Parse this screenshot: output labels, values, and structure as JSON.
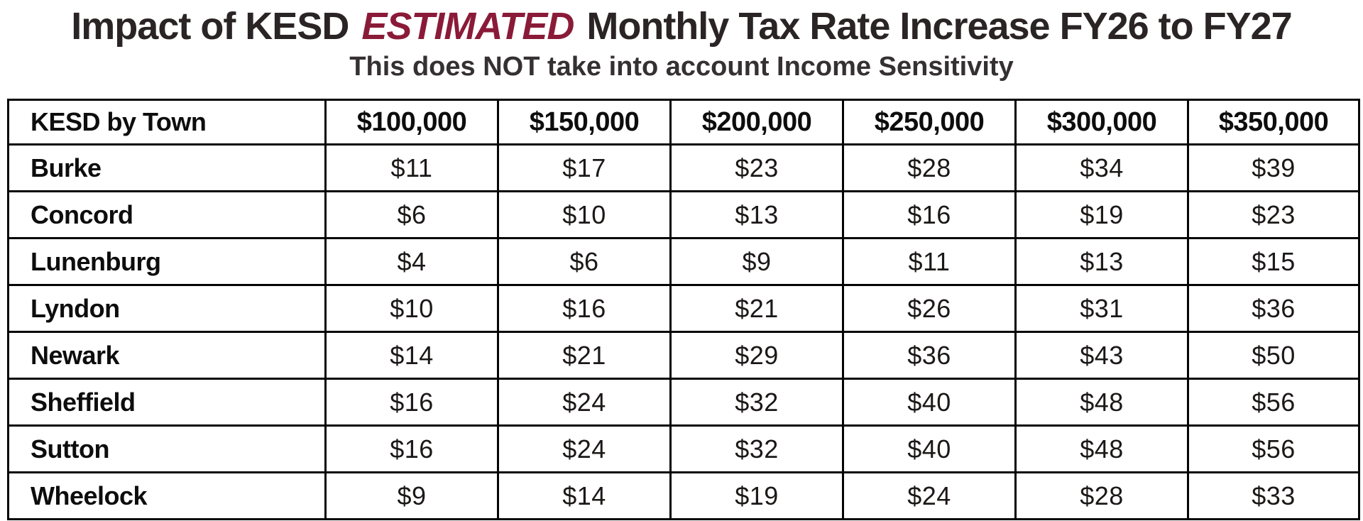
{
  "title": {
    "prefix": "Impact of KESD",
    "highlight": "ESTIMATED",
    "suffix": "Monthly Tax Rate Increase FY26 to FY27",
    "text_color": "#2a2425",
    "highlight_color": "#8a1b38"
  },
  "subtitle": {
    "text": "This does NOT take into account Income Sensitivity",
    "color": "#353032"
  },
  "table": {
    "border_color": "#050505",
    "header": [
      "KESD by Town",
      "$100,000",
      "$150,000",
      "$200,000",
      "$250,000",
      "$300,000",
      "$350,000"
    ],
    "rows": [
      {
        "town": "Burke",
        "values": [
          "$11",
          "$17",
          "$23",
          "$28",
          "$34",
          "$39"
        ]
      },
      {
        "town": "Concord",
        "values": [
          "$6",
          "$10",
          "$13",
          "$16",
          "$19",
          "$23"
        ]
      },
      {
        "town": "Lunenburg",
        "values": [
          "$4",
          "$6",
          "$9",
          "$11",
          "$13",
          "$15"
        ]
      },
      {
        "town": "Lyndon",
        "values": [
          "$10",
          "$16",
          "$21",
          "$26",
          "$31",
          "$36"
        ]
      },
      {
        "town": "Newark",
        "values": [
          "$14",
          "$21",
          "$29",
          "$36",
          "$43",
          "$50"
        ]
      },
      {
        "town": "Sheffield",
        "values": [
          "$16",
          "$24",
          "$32",
          "$40",
          "$48",
          "$56"
        ]
      },
      {
        "town": "Sutton",
        "values": [
          "$16",
          "$24",
          "$32",
          "$40",
          "$48",
          "$56"
        ]
      },
      {
        "town": "Wheelock",
        "values": [
          "$9",
          "$14",
          "$19",
          "$24",
          "$28",
          "$33"
        ]
      }
    ]
  },
  "chart_data": {
    "type": "table",
    "title": "Impact of KESD ESTIMATED Monthly Tax Rate Increase FY26 to FY27",
    "subtitle": "This does NOT take into account Income Sensitivity",
    "columns": [
      "KESD by Town",
      "$100,000",
      "$150,000",
      "$200,000",
      "$250,000",
      "$300,000",
      "$350,000"
    ],
    "categories": [
      100000,
      150000,
      200000,
      250000,
      300000,
      350000
    ],
    "series": [
      {
        "name": "Burke",
        "values": [
          11,
          17,
          23,
          28,
          34,
          39
        ]
      },
      {
        "name": "Concord",
        "values": [
          6,
          10,
          13,
          16,
          19,
          23
        ]
      },
      {
        "name": "Lunenburg",
        "values": [
          4,
          6,
          9,
          11,
          13,
          15
        ]
      },
      {
        "name": "Lyndon",
        "values": [
          10,
          16,
          21,
          26,
          31,
          36
        ]
      },
      {
        "name": "Newark",
        "values": [
          14,
          21,
          29,
          36,
          43,
          50
        ]
      },
      {
        "name": "Sheffield",
        "values": [
          16,
          24,
          32,
          40,
          48,
          56
        ]
      },
      {
        "name": "Sutton",
        "values": [
          16,
          24,
          32,
          40,
          48,
          56
        ]
      },
      {
        "name": "Wheelock",
        "values": [
          9,
          14,
          19,
          24,
          28,
          33
        ]
      }
    ],
    "units": "USD per month"
  }
}
